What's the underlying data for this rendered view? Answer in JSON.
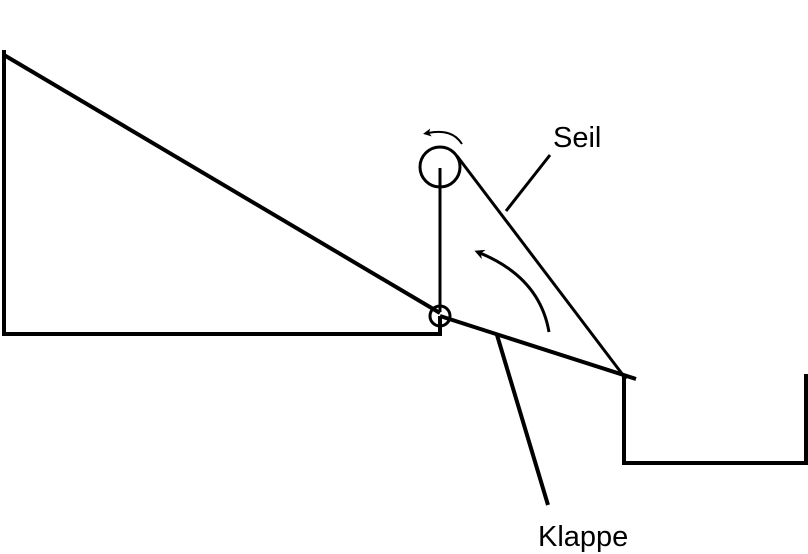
{
  "labels": {
    "rope": "Seil",
    "flap": "Klappe"
  },
  "colors": {
    "line": "#000000",
    "background": "#ffffff"
  }
}
